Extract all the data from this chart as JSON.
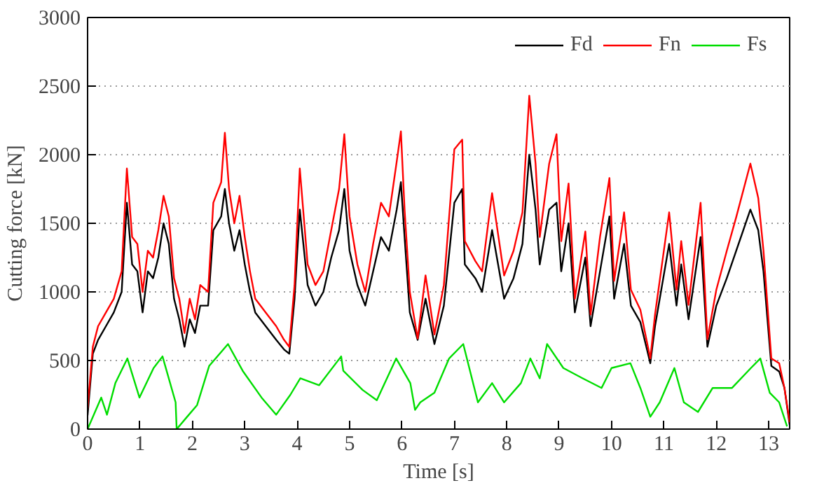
{
  "chart_data": {
    "type": "line",
    "xlabel": "Time [s]",
    "ylabel": "Cutting force [kN]",
    "xlim": [
      0,
      13.4
    ],
    "ylim": [
      0,
      3000
    ],
    "xticks": [
      0,
      1,
      2,
      3,
      4,
      5,
      6,
      7,
      8,
      9,
      10,
      11,
      12,
      13
    ],
    "yticks": [
      0,
      500,
      1000,
      1500,
      2000,
      2500,
      3000
    ],
    "grid": "y",
    "legend": "top right",
    "line_style": "solid",
    "marker": "none",
    "series": [
      {
        "name": "Fd",
        "color": "#000000",
        "x": [
          0,
          0.1,
          0.2,
          0.35,
          0.5,
          0.65,
          0.75,
          0.85,
          0.95,
          1.05,
          1.15,
          1.25,
          1.35,
          1.45,
          1.55,
          1.65,
          1.75,
          1.85,
          1.95,
          2.05,
          2.15,
          2.3,
          2.4,
          2.55,
          2.62,
          2.7,
          2.8,
          2.9,
          3.0,
          3.1,
          3.2,
          3.4,
          3.6,
          3.75,
          3.85,
          3.95,
          4.05,
          4.2,
          4.35,
          4.5,
          4.65,
          4.8,
          4.9,
          5.0,
          5.15,
          5.3,
          5.45,
          5.6,
          5.75,
          5.9,
          5.98,
          6.05,
          6.15,
          6.3,
          6.45,
          6.62,
          6.8,
          7.0,
          7.15,
          7.2,
          7.4,
          7.53,
          7.72,
          7.95,
          8.13,
          8.3,
          8.43,
          8.55,
          8.63,
          8.81,
          8.95,
          9.04,
          9.18,
          9.3,
          9.5,
          9.6,
          9.78,
          9.96,
          10.05,
          10.24,
          10.37,
          10.55,
          10.74,
          10.83,
          11.1,
          11.24,
          11.33,
          11.47,
          11.7,
          11.83,
          12.0,
          12.2,
          12.38,
          12.65,
          12.8,
          12.9,
          13.05,
          13.2,
          13.3,
          13.4
        ],
        "values": [
          100,
          550,
          650,
          750,
          850,
          1000,
          1650,
          1200,
          1150,
          850,
          1150,
          1100,
          1250,
          1500,
          1350,
          950,
          800,
          600,
          800,
          700,
          900,
          900,
          1450,
          1550,
          1750,
          1500,
          1300,
          1450,
          1200,
          1000,
          850,
          750,
          650,
          580,
          550,
          950,
          1600,
          1050,
          900,
          1000,
          1250,
          1450,
          1750,
          1300,
          1050,
          900,
          1150,
          1400,
          1300,
          1600,
          1800,
          1400,
          850,
          650,
          950,
          620,
          900,
          1650,
          1750,
          1200,
          1100,
          1000,
          1450,
          950,
          1100,
          1350,
          2000,
          1600,
          1200,
          1600,
          1650,
          1150,
          1500,
          850,
          1250,
          750,
          1150,
          1550,
          950,
          1350,
          900,
          780,
          480,
          750,
          1350,
          900,
          1200,
          800,
          1400,
          600,
          900,
          1100,
          1300,
          1600,
          1450,
          1150,
          460,
          420,
          300,
          30
        ]
      },
      {
        "name": "Fn",
        "color": "#ff0000",
        "x": [
          0,
          0.1,
          0.2,
          0.35,
          0.5,
          0.65,
          0.75,
          0.85,
          0.95,
          1.05,
          1.15,
          1.25,
          1.35,
          1.45,
          1.55,
          1.65,
          1.75,
          1.85,
          1.95,
          2.05,
          2.15,
          2.3,
          2.4,
          2.55,
          2.62,
          2.7,
          2.8,
          2.9,
          3.0,
          3.1,
          3.2,
          3.4,
          3.6,
          3.75,
          3.85,
          3.95,
          4.05,
          4.2,
          4.35,
          4.5,
          4.65,
          4.8,
          4.9,
          5.0,
          5.15,
          5.3,
          5.45,
          5.6,
          5.75,
          5.9,
          5.98,
          6.05,
          6.15,
          6.3,
          6.45,
          6.62,
          6.8,
          7.0,
          7.15,
          7.2,
          7.4,
          7.53,
          7.72,
          7.95,
          8.13,
          8.3,
          8.43,
          8.55,
          8.63,
          8.81,
          8.95,
          9.04,
          9.18,
          9.3,
          9.5,
          9.6,
          9.78,
          9.96,
          10.05,
          10.24,
          10.37,
          10.55,
          10.74,
          10.83,
          11.1,
          11.24,
          11.33,
          11.47,
          11.7,
          11.83,
          12.0,
          12.2,
          12.38,
          12.65,
          12.8,
          12.9,
          13.05,
          13.2,
          13.3,
          13.4
        ],
        "values": [
          150,
          600,
          750,
          850,
          950,
          1150,
          1900,
          1400,
          1350,
          1000,
          1300,
          1250,
          1450,
          1700,
          1550,
          1100,
          950,
          700,
          950,
          800,
          1050,
          1000,
          1650,
          1800,
          2160,
          1750,
          1500,
          1700,
          1400,
          1150,
          950,
          850,
          750,
          650,
          600,
          1050,
          1900,
          1200,
          1050,
          1150,
          1450,
          1750,
          2150,
          1550,
          1200,
          1000,
          1350,
          1650,
          1550,
          1950,
          2170,
          1600,
          1000,
          660,
          1120,
          690,
          1050,
          2040,
          2110,
          1370,
          1225,
          1150,
          1720,
          1120,
          1300,
          1580,
          2430,
          1935,
          1400,
          1935,
          2150,
          1370,
          1790,
          950,
          1440,
          835,
          1400,
          1830,
          1080,
          1580,
          1015,
          870,
          515,
          835,
          1580,
          1015,
          1370,
          905,
          1650,
          655,
          1015,
          1300,
          1545,
          1935,
          1685,
          1300,
          515,
          480,
          300,
          50
        ]
      },
      {
        "name": "Fs",
        "color": "#00dd00",
        "x": [
          0,
          0.26,
          0.37,
          0.53,
          0.76,
          0.99,
          1.26,
          1.43,
          1.68,
          1.7,
          1.9,
          2.09,
          2.32,
          2.68,
          2.96,
          3.32,
          3.6,
          3.87,
          4.06,
          4.42,
          4.84,
          4.88,
          5.25,
          5.52,
          5.89,
          6.16,
          6.25,
          6.35,
          6.62,
          6.9,
          7.17,
          7.45,
          7.72,
          7.95,
          8.27,
          8.45,
          8.63,
          8.77,
          9.08,
          9.45,
          9.81,
          10.0,
          10.36,
          10.55,
          10.74,
          10.92,
          11.2,
          11.38,
          11.65,
          11.93,
          12.3,
          12.66,
          12.84,
          13.02,
          13.2,
          13.35
        ],
        "values": [
          0,
          230,
          105,
          335,
          515,
          230,
          445,
          530,
          195,
          0,
          90,
          175,
          460,
          620,
          425,
          230,
          105,
          250,
          370,
          320,
          530,
          425,
          285,
          210,
          515,
          335,
          140,
          195,
          265,
          515,
          620,
          195,
          335,
          195,
          335,
          515,
          370,
          620,
          445,
          370,
          300,
          445,
          480,
          300,
          90,
          195,
          445,
          195,
          125,
          300,
          300,
          445,
          515,
          265,
          195,
          20
        ]
      }
    ]
  }
}
